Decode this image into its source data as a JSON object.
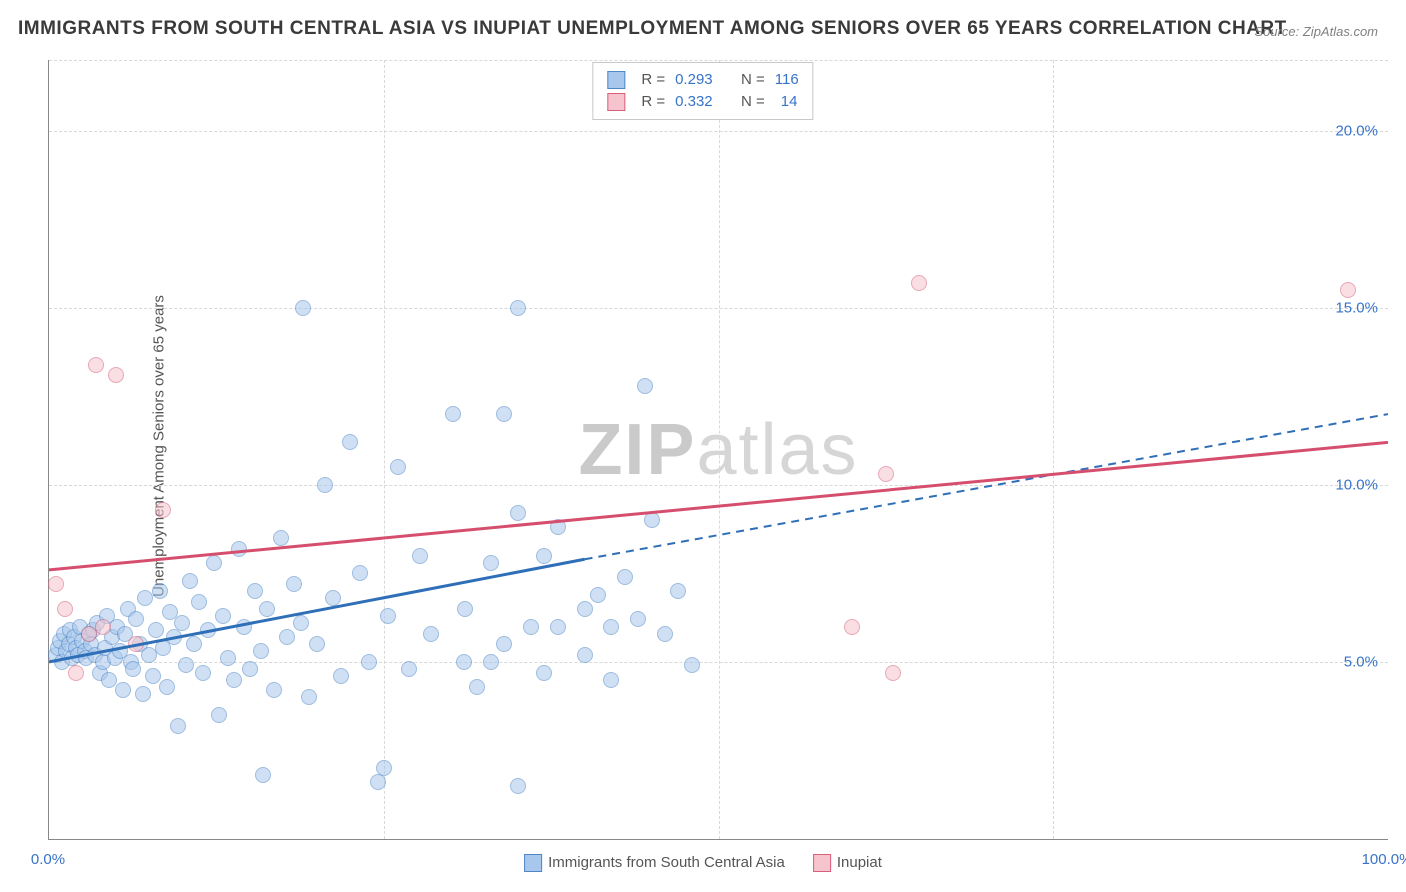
{
  "title": "IMMIGRANTS FROM SOUTH CENTRAL ASIA VS INUPIAT UNEMPLOYMENT AMONG SENIORS OVER 65 YEARS CORRELATION CHART",
  "source": "Source: ZipAtlas.com",
  "y_axis_label": "Unemployment Among Seniors over 65 years",
  "watermark_a": "ZIP",
  "watermark_b": "atlas",
  "chart": {
    "type": "scatter",
    "xlim": [
      0,
      100
    ],
    "ylim": [
      0,
      22
    ],
    "x_ticks": [
      0,
      100
    ],
    "x_tick_labels": [
      "0.0%",
      "100.0%"
    ],
    "x_minor_ticks": [
      25,
      50,
      75
    ],
    "y_ticks": [
      5,
      10,
      15,
      20
    ],
    "y_tick_labels": [
      "5.0%",
      "10.0%",
      "15.0%",
      "20.0%"
    ],
    "background_color": "#ffffff",
    "grid_color": "#d8d8d8",
    "axis_color": "#888888",
    "tick_label_color": "#3773c8",
    "marker_radius": 8,
    "marker_opacity": 0.55,
    "marker_border_width": 1,
    "series": [
      {
        "name": "Immigrants from South Central Asia",
        "fill_color": "#a8c7ec",
        "border_color": "#4f86c6",
        "line_color": "#2f6fb8",
        "R": "0.293",
        "N": "116",
        "trend": {
          "x1": 0,
          "y1": 5.0,
          "x2": 40,
          "y2": 7.9,
          "x3": 100,
          "y3": 12.0,
          "dashed_from": 40
        },
        "points": [
          [
            0.5,
            5.2
          ],
          [
            0.7,
            5.4
          ],
          [
            0.8,
            5.6
          ],
          [
            1.0,
            5.0
          ],
          [
            1.1,
            5.8
          ],
          [
            1.3,
            5.3
          ],
          [
            1.5,
            5.5
          ],
          [
            1.6,
            5.9
          ],
          [
            1.7,
            5.1
          ],
          [
            1.9,
            5.7
          ],
          [
            2.0,
            5.4
          ],
          [
            2.2,
            5.2
          ],
          [
            2.3,
            6.0
          ],
          [
            2.5,
            5.6
          ],
          [
            2.7,
            5.3
          ],
          [
            2.8,
            5.1
          ],
          [
            3.0,
            5.8
          ],
          [
            3.1,
            5.5
          ],
          [
            3.3,
            5.9
          ],
          [
            3.4,
            5.2
          ],
          [
            3.6,
            6.1
          ],
          [
            3.8,
            4.7
          ],
          [
            4.0,
            5.0
          ],
          [
            4.2,
            5.4
          ],
          [
            4.3,
            6.3
          ],
          [
            4.5,
            4.5
          ],
          [
            4.7,
            5.7
          ],
          [
            4.9,
            5.1
          ],
          [
            5.1,
            6.0
          ],
          [
            5.3,
            5.3
          ],
          [
            5.5,
            4.2
          ],
          [
            5.7,
            5.8
          ],
          [
            5.9,
            6.5
          ],
          [
            6.1,
            5.0
          ],
          [
            6.3,
            4.8
          ],
          [
            6.5,
            6.2
          ],
          [
            6.8,
            5.5
          ],
          [
            7.0,
            4.1
          ],
          [
            7.2,
            6.8
          ],
          [
            7.5,
            5.2
          ],
          [
            7.8,
            4.6
          ],
          [
            8.0,
            5.9
          ],
          [
            8.3,
            7.0
          ],
          [
            8.5,
            5.4
          ],
          [
            8.8,
            4.3
          ],
          [
            9.0,
            6.4
          ],
          [
            9.3,
            5.7
          ],
          [
            9.6,
            3.2
          ],
          [
            9.9,
            6.1
          ],
          [
            10.2,
            4.9
          ],
          [
            10.5,
            7.3
          ],
          [
            10.8,
            5.5
          ],
          [
            11.2,
            6.7
          ],
          [
            11.5,
            4.7
          ],
          [
            11.9,
            5.9
          ],
          [
            12.3,
            7.8
          ],
          [
            12.7,
            3.5
          ],
          [
            13.0,
            6.3
          ],
          [
            13.4,
            5.1
          ],
          [
            13.8,
            4.5
          ],
          [
            14.2,
            8.2
          ],
          [
            14.6,
            6.0
          ],
          [
            15.0,
            4.8
          ],
          [
            15.4,
            7.0
          ],
          [
            15.8,
            5.3
          ],
          [
            16.3,
            6.5
          ],
          [
            16.8,
            4.2
          ],
          [
            17.3,
            8.5
          ],
          [
            17.8,
            5.7
          ],
          [
            18.3,
            7.2
          ],
          [
            18.8,
            6.1
          ],
          [
            19.4,
            4.0
          ],
          [
            20.0,
            5.5
          ],
          [
            20.6,
            10.0
          ],
          [
            21.2,
            6.8
          ],
          [
            21.8,
            4.6
          ],
          [
            22.5,
            11.2
          ],
          [
            23.2,
            7.5
          ],
          [
            23.9,
            5.0
          ],
          [
            24.6,
            1.6
          ],
          [
            25.3,
            6.3
          ],
          [
            26.1,
            10.5
          ],
          [
            26.9,
            4.8
          ],
          [
            27.7,
            8.0
          ],
          [
            28.5,
            5.8
          ],
          [
            25.0,
            2.0
          ],
          [
            30.2,
            12.0
          ],
          [
            31.1,
            6.5
          ],
          [
            32.0,
            4.3
          ],
          [
            33.0,
            7.8
          ],
          [
            34.0,
            5.5
          ],
          [
            35.0,
            9.2
          ],
          [
            36.0,
            6.0
          ],
          [
            37.0,
            4.7
          ],
          [
            19.0,
            15.0
          ],
          [
            35.0,
            15.0
          ],
          [
            38.0,
            8.8
          ],
          [
            35.0,
            1.5
          ],
          [
            40.0,
            5.2
          ],
          [
            41.0,
            6.9
          ],
          [
            42.0,
            4.5
          ],
          [
            43.0,
            7.4
          ],
          [
            44.0,
            6.2
          ],
          [
            16.0,
            1.8
          ],
          [
            45.0,
            9.0
          ],
          [
            46.0,
            5.8
          ],
          [
            47.0,
            7.0
          ],
          [
            48.0,
            4.9
          ],
          [
            44.5,
            12.8
          ],
          [
            34.0,
            12.0
          ],
          [
            38.0,
            6.0
          ],
          [
            40.0,
            6.5
          ],
          [
            42.0,
            6.0
          ],
          [
            37.0,
            8.0
          ],
          [
            31.0,
            5.0
          ],
          [
            33.0,
            5.0
          ]
        ]
      },
      {
        "name": "Inupiat",
        "fill_color": "#f5c4cd",
        "border_color": "#d85f7a",
        "line_color": "#d64e6e",
        "R": "0.332",
        "N": "14",
        "trend": {
          "x1": 0,
          "y1": 7.6,
          "x2": 100,
          "y2": 11.2
        },
        "points": [
          [
            0.5,
            7.2
          ],
          [
            1.2,
            6.5
          ],
          [
            2.0,
            4.7
          ],
          [
            3.5,
            13.4
          ],
          [
            5.0,
            13.1
          ],
          [
            8.5,
            9.3
          ],
          [
            60.0,
            6.0
          ],
          [
            63.0,
            4.7
          ],
          [
            62.5,
            10.3
          ],
          [
            65.0,
            15.7
          ],
          [
            97.0,
            15.5
          ],
          [
            4.0,
            6.0
          ],
          [
            6.5,
            5.5
          ],
          [
            3.0,
            5.8
          ]
        ]
      }
    ]
  },
  "legend_labels": {
    "series_a": "Immigrants from South Central Asia",
    "series_b": "Inupiat",
    "r_prefix": "R =",
    "n_prefix": "N ="
  }
}
